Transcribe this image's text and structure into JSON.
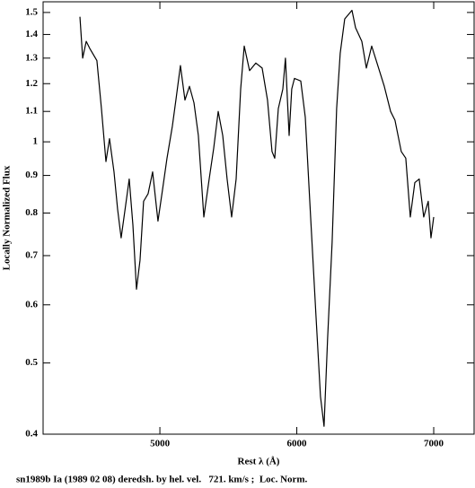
{
  "chart_data": {
    "type": "line",
    "caption": "sn1989b Ia (1989 02 08) deredsh. by hel. vel.   721. km/s ;  Loc. Norm.",
    "x_label": "Rest λ (Å)",
    "y_label": "Locally Normalized Flux",
    "y_scale": "log",
    "color": "#000000",
    "x": [
      4416,
      4436,
      4462,
      4488,
      4540,
      4573,
      4606,
      4632,
      4665,
      4691,
      4717,
      4750,
      4776,
      4803,
      4829,
      4855,
      4881,
      4914,
      4947,
      4986,
      5019,
      5052,
      5091,
      5117,
      5150,
      5183,
      5216,
      5249,
      5281,
      5321,
      5360,
      5393,
      5426,
      5459,
      5491,
      5524,
      5557,
      5590,
      5616,
      5655,
      5701,
      5747,
      5786,
      5819,
      5839,
      5865,
      5898,
      5917,
      5944,
      5963,
      5983,
      6029,
      6062,
      6101,
      6140,
      6173,
      6199,
      6225,
      6258,
      6291,
      6317,
      6350,
      6403,
      6429,
      6475,
      6508,
      6547,
      6586,
      6639,
      6685,
      6717,
      6763,
      6796,
      6829,
      6862,
      6894,
      6927,
      6960,
      6980,
      7000
    ],
    "values": [
      1.48,
      1.3,
      1.37,
      1.34,
      1.29,
      1.11,
      0.94,
      1.01,
      0.91,
      0.81,
      0.74,
      0.82,
      0.89,
      0.77,
      0.63,
      0.69,
      0.83,
      0.85,
      0.91,
      0.78,
      0.86,
      0.95,
      1.05,
      1.14,
      1.27,
      1.14,
      1.19,
      1.13,
      1.02,
      0.79,
      0.89,
      0.98,
      1.1,
      1.02,
      0.89,
      0.79,
      0.89,
      1.18,
      1.35,
      1.25,
      1.28,
      1.26,
      1.14,
      0.97,
      0.95,
      1.11,
      1.18,
      1.3,
      1.02,
      1.18,
      1.22,
      1.21,
      1.08,
      0.79,
      0.58,
      0.45,
      0.41,
      0.54,
      0.73,
      1.11,
      1.32,
      1.47,
      1.51,
      1.43,
      1.37,
      1.26,
      1.35,
      1.28,
      1.19,
      1.1,
      1.07,
      0.97,
      0.95,
      0.79,
      0.88,
      0.89,
      0.79,
      0.83,
      0.74,
      0.79
    ],
    "xlim": [
      4147,
      7295
    ],
    "xticks": [
      5000,
      6000,
      7000
    ],
    "ylim": [
      0.4,
      1.551
    ],
    "yticks": [
      0.4,
      0.5,
      0.6,
      0.7,
      0.8,
      0.9,
      1,
      1.1,
      1.2,
      1.3,
      1.4,
      1.5
    ]
  }
}
